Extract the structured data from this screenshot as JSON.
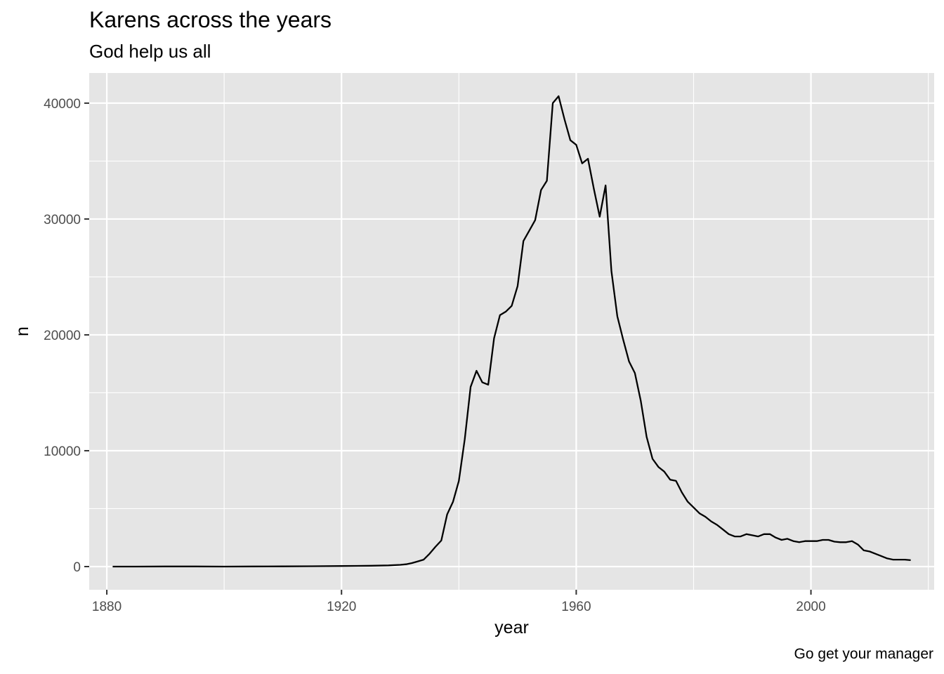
{
  "chart_data": {
    "type": "line",
    "title": "Karens across the years",
    "subtitle": "God help us all",
    "caption": "Go get your manager",
    "xlabel": "year",
    "ylabel": "n",
    "xlim": [
      1877,
      2021
    ],
    "ylim": [
      -2000,
      42600
    ],
    "x_ticks": [
      1880,
      1920,
      1960,
      2000
    ],
    "x_minor_ticks": [
      1900,
      1940,
      1980,
      2020
    ],
    "y_ticks": [
      0,
      10000,
      20000,
      30000,
      40000
    ],
    "y_minor_ticks": [
      5000,
      15000,
      25000,
      35000
    ],
    "grid": true,
    "panel_background": "#e5e5e5",
    "grid_color": "#ffffff",
    "line_color": "#000000",
    "series": [
      {
        "x": [
          1881,
          1885,
          1890,
          1895,
          1900,
          1905,
          1910,
          1915,
          1920,
          1925,
          1928,
          1930,
          1931,
          1932,
          1933,
          1934,
          1935,
          1936,
          1937,
          1938,
          1939,
          1940,
          1941,
          1942,
          1943,
          1944,
          1945,
          1946,
          1947,
          1948,
          1949,
          1950,
          1951,
          1952,
          1953,
          1954,
          1955,
          1956,
          1957,
          1958,
          1959,
          1960,
          1961,
          1962,
          1963,
          1964,
          1965,
          1966,
          1967,
          1968,
          1969,
          1970,
          1971,
          1972,
          1973,
          1974,
          1975,
          1976,
          1977,
          1978,
          1979,
          1980,
          1981,
          1982,
          1983,
          1984,
          1985,
          1986,
          1987,
          1988,
          1989,
          1990,
          1991,
          1992,
          1993,
          1994,
          1995,
          1996,
          1997,
          1998,
          1999,
          2000,
          2001,
          2002,
          2003,
          2004,
          2005,
          2006,
          2007,
          2008,
          2009,
          2010,
          2011,
          2012,
          2013,
          2014,
          2015,
          2016,
          2017
        ],
        "y": [
          0,
          0,
          10,
          10,
          0,
          10,
          20,
          30,
          50,
          70,
          100,
          150,
          200,
          300,
          450,
          600,
          1100,
          1700,
          2250,
          4500,
          5600,
          7400,
          11000,
          15500,
          16900,
          15900,
          15700,
          19700,
          21700,
          22000,
          22500,
          24200,
          28100,
          29000,
          29900,
          32500,
          33300,
          40000,
          40600,
          38600,
          36800,
          36400,
          34800,
          35200,
          32600,
          30200,
          32900,
          25500,
          21600,
          19600,
          17700,
          16700,
          14300,
          11200,
          9300,
          8600,
          8200,
          7500,
          7400,
          6400,
          5600,
          5100,
          4600,
          4300,
          3900,
          3600,
          3200,
          2800,
          2600,
          2600,
          2800,
          2700,
          2600,
          2800,
          2800,
          2500,
          2300,
          2400,
          2200,
          2100,
          2200,
          2200,
          2200,
          2300,
          2300,
          2150,
          2100,
          2100,
          2200,
          1900,
          1400,
          1300,
          1100,
          900,
          700,
          600,
          600,
          600,
          550
        ]
      }
    ]
  }
}
